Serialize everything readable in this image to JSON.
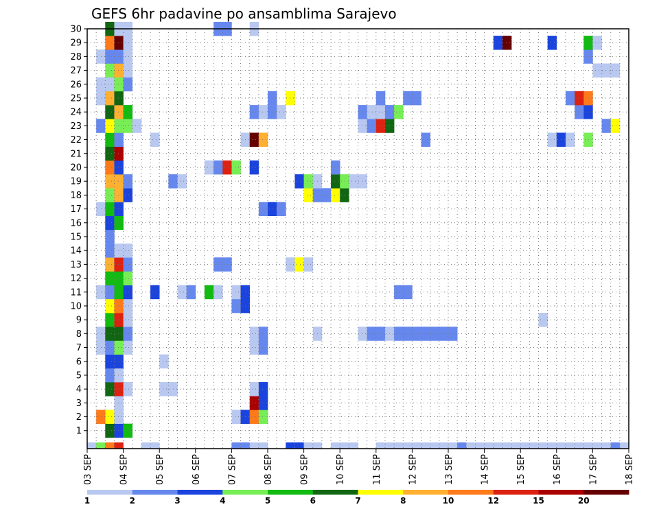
{
  "chart_data": {
    "type": "heatmap",
    "title": "GEFS 6hr padavine po ansamblima Sarajevo",
    "xlabel": "",
    "ylabel": "",
    "x_tick_labels": [
      "03 SEP",
      "04 SEP",
      "05 SEP",
      "06 SEP",
      "07 SEP",
      "08 SEP",
      "09 SEP",
      "10 SEP",
      "11 SEP",
      "12 SEP",
      "13 SEP",
      "14 SEP",
      "15 SEP",
      "16 SEP",
      "17 SEP",
      "18 SEP"
    ],
    "y_tick_labels": [
      "1",
      "2",
      "3",
      "4",
      "5",
      "6",
      "7",
      "8",
      "9",
      "10",
      "11",
      "12",
      "13",
      "14",
      "15",
      "16",
      "17",
      "18",
      "19",
      "20",
      "21",
      "22",
      "23",
      "24",
      "25",
      "26",
      "27",
      "28",
      "29",
      "30"
    ],
    "ylim": [
      0,
      30
    ],
    "xlim_6h_steps": [
      0,
      60
    ],
    "grid": true,
    "colorbar": {
      "position": "bottom",
      "tick_labels": [
        "1",
        "2",
        "3",
        "4",
        "5",
        "6",
        "7",
        "8",
        "10",
        "12",
        "15",
        "20"
      ],
      "colors": [
        "#b8c8f0",
        "#6688ee",
        "#1a44dd",
        "#77ee55",
        "#11bb11",
        "#116611",
        "#ffff00",
        "#ffb030",
        "#ff7a1a",
        "#dd2211",
        "#aa0000",
        "#660000"
      ]
    },
    "series": [
      {
        "member": 0,
        "cells": [
          [
            0,
            0
          ],
          [
            1,
            3
          ],
          [
            2,
            8
          ],
          [
            3,
            9
          ],
          [
            6,
            0
          ],
          [
            7,
            0
          ],
          [
            16,
            1
          ],
          [
            17,
            1
          ],
          [
            18,
            0
          ],
          [
            19,
            0
          ],
          [
            22,
            2
          ],
          [
            23,
            2
          ],
          [
            24,
            0
          ],
          [
            25,
            0
          ],
          [
            27,
            0
          ],
          [
            28,
            0
          ],
          [
            29,
            0
          ],
          [
            32,
            0
          ],
          [
            33,
            0
          ],
          [
            34,
            0
          ],
          [
            35,
            0
          ],
          [
            36,
            0
          ],
          [
            37,
            0
          ],
          [
            38,
            0
          ],
          [
            39,
            0
          ],
          [
            40,
            0
          ],
          [
            41,
            1
          ],
          [
            42,
            0
          ],
          [
            43,
            0
          ],
          [
            44,
            0
          ],
          [
            45,
            0
          ],
          [
            46,
            0
          ],
          [
            47,
            0
          ],
          [
            48,
            0
          ],
          [
            49,
            0
          ],
          [
            50,
            0
          ],
          [
            51,
            0
          ],
          [
            52,
            0
          ],
          [
            53,
            0
          ],
          [
            54,
            0
          ],
          [
            55,
            0
          ],
          [
            56,
            0
          ],
          [
            57,
            0
          ],
          [
            58,
            1
          ],
          [
            59,
            0
          ]
        ]
      },
      {
        "member": 1,
        "cells": [
          [
            2,
            5
          ],
          [
            3,
            2
          ],
          [
            4,
            4
          ]
        ]
      },
      {
        "member": 2,
        "cells": [
          [
            1,
            8
          ],
          [
            2,
            6
          ],
          [
            3,
            0
          ],
          [
            16,
            0
          ],
          [
            17,
            2
          ],
          [
            18,
            8
          ],
          [
            19,
            3
          ]
        ]
      },
      {
        "member": 3,
        "cells": [
          [
            3,
            0
          ],
          [
            18,
            10
          ],
          [
            19,
            2
          ]
        ]
      },
      {
        "member": 4,
        "cells": [
          [
            2,
            5
          ],
          [
            3,
            9
          ],
          [
            4,
            0
          ],
          [
            8,
            0
          ],
          [
            9,
            0
          ],
          [
            18,
            0
          ],
          [
            19,
            2
          ]
        ]
      },
      {
        "member": 5,
        "cells": [
          [
            2,
            1
          ],
          [
            3,
            0
          ]
        ]
      },
      {
        "member": 6,
        "cells": [
          [
            2,
            2
          ],
          [
            3,
            2
          ],
          [
            8,
            0
          ]
        ]
      },
      {
        "member": 7,
        "cells": [
          [
            1,
            0
          ],
          [
            2,
            1
          ],
          [
            3,
            3
          ],
          [
            4,
            0
          ],
          [
            18,
            0
          ],
          [
            19,
            1
          ]
        ]
      },
      {
        "member": 8,
        "cells": [
          [
            1,
            0
          ],
          [
            2,
            5
          ],
          [
            3,
            5
          ],
          [
            4,
            1
          ],
          [
            18,
            0
          ],
          [
            19,
            1
          ],
          [
            25,
            0
          ],
          [
            30,
            0
          ],
          [
            31,
            1
          ],
          [
            32,
            1
          ],
          [
            33,
            0
          ],
          [
            34,
            1
          ],
          [
            35,
            1
          ],
          [
            36,
            1
          ],
          [
            37,
            1
          ],
          [
            38,
            1
          ],
          [
            39,
            1
          ],
          [
            40,
            1
          ]
        ]
      },
      {
        "member": 9,
        "cells": [
          [
            2,
            4
          ],
          [
            3,
            9
          ],
          [
            4,
            0
          ],
          [
            50,
            0
          ]
        ]
      },
      {
        "member": 10,
        "cells": [
          [
            2,
            6
          ],
          [
            3,
            8
          ],
          [
            4,
            0
          ],
          [
            16,
            1
          ],
          [
            17,
            2
          ]
        ]
      },
      {
        "member": 11,
        "cells": [
          [
            1,
            0
          ],
          [
            2,
            1
          ],
          [
            3,
            4
          ],
          [
            4,
            2
          ],
          [
            7,
            2
          ],
          [
            10,
            0
          ],
          [
            11,
            1
          ],
          [
            13,
            4
          ],
          [
            14,
            0
          ],
          [
            16,
            0
          ],
          [
            17,
            2
          ],
          [
            34,
            1
          ],
          [
            35,
            1
          ]
        ]
      },
      {
        "member": 12,
        "cells": [
          [
            2,
            4
          ],
          [
            3,
            4
          ],
          [
            4,
            3
          ]
        ]
      },
      {
        "member": 13,
        "cells": [
          [
            2,
            7
          ],
          [
            3,
            9
          ],
          [
            4,
            1
          ],
          [
            14,
            1
          ],
          [
            15,
            1
          ],
          [
            22,
            0
          ],
          [
            23,
            6
          ],
          [
            24,
            0
          ]
        ]
      },
      {
        "member": 14,
        "cells": [
          [
            2,
            1
          ],
          [
            3,
            0
          ],
          [
            4,
            0
          ]
        ]
      },
      {
        "member": 15,
        "cells": [
          [
            2,
            1
          ]
        ]
      },
      {
        "member": 16,
        "cells": [
          [
            2,
            2
          ],
          [
            3,
            4
          ]
        ]
      },
      {
        "member": 17,
        "cells": [
          [
            1,
            0
          ],
          [
            2,
            4
          ],
          [
            3,
            2
          ],
          [
            19,
            1
          ],
          [
            20,
            2
          ],
          [
            21,
            1
          ]
        ]
      },
      {
        "member": 18,
        "cells": [
          [
            2,
            3
          ],
          [
            3,
            7
          ],
          [
            4,
            2
          ],
          [
            24,
            6
          ],
          [
            25,
            1
          ],
          [
            26,
            1
          ],
          [
            27,
            6
          ],
          [
            28,
            5
          ]
        ]
      },
      {
        "member": 19,
        "cells": [
          [
            2,
            7
          ],
          [
            3,
            7
          ],
          [
            4,
            1
          ],
          [
            9,
            1
          ],
          [
            10,
            0
          ],
          [
            23,
            2
          ],
          [
            24,
            3
          ],
          [
            25,
            0
          ],
          [
            27,
            5
          ],
          [
            28,
            3
          ],
          [
            29,
            0
          ],
          [
            30,
            0
          ]
        ]
      },
      {
        "member": 20,
        "cells": [
          [
            2,
            8
          ],
          [
            3,
            2
          ],
          [
            13,
            0
          ],
          [
            14,
            1
          ],
          [
            15,
            9
          ],
          [
            16,
            3
          ],
          [
            18,
            2
          ],
          [
            27,
            1
          ]
        ]
      },
      {
        "member": 21,
        "cells": [
          [
            2,
            5
          ],
          [
            3,
            10
          ]
        ]
      },
      {
        "member": 22,
        "cells": [
          [
            2,
            4
          ],
          [
            3,
            1
          ],
          [
            7,
            0
          ],
          [
            17,
            0
          ],
          [
            18,
            11
          ],
          [
            19,
            7
          ],
          [
            37,
            1
          ],
          [
            51,
            0
          ],
          [
            52,
            2
          ],
          [
            53,
            0
          ],
          [
            55,
            3
          ]
        ]
      },
      {
        "member": 23,
        "cells": [
          [
            1,
            1
          ],
          [
            2,
            6
          ],
          [
            3,
            3
          ],
          [
            4,
            3
          ],
          [
            5,
            0
          ],
          [
            30,
            0
          ],
          [
            31,
            1
          ],
          [
            32,
            9
          ],
          [
            33,
            5
          ],
          [
            57,
            1
          ],
          [
            58,
            6
          ]
        ]
      },
      {
        "member": 24,
        "cells": [
          [
            2,
            5
          ],
          [
            3,
            7
          ],
          [
            4,
            4
          ],
          [
            18,
            1
          ],
          [
            19,
            0
          ],
          [
            20,
            1
          ],
          [
            21,
            0
          ],
          [
            30,
            1
          ],
          [
            31,
            0
          ],
          [
            32,
            0
          ],
          [
            33,
            1
          ],
          [
            34,
            3
          ],
          [
            54,
            1
          ],
          [
            55,
            2
          ]
        ]
      },
      {
        "member": 25,
        "cells": [
          [
            1,
            0
          ],
          [
            2,
            7
          ],
          [
            3,
            5
          ],
          [
            20,
            1
          ],
          [
            22,
            6
          ],
          [
            32,
            1
          ],
          [
            35,
            1
          ],
          [
            36,
            1
          ],
          [
            53,
            1
          ],
          [
            54,
            9
          ],
          [
            55,
            8
          ]
        ]
      },
      {
        "member": 26,
        "cells": [
          [
            1,
            0
          ],
          [
            2,
            0
          ],
          [
            3,
            3
          ],
          [
            4,
            1
          ]
        ]
      },
      {
        "member": 27,
        "cells": [
          [
            2,
            3
          ],
          [
            3,
            7
          ],
          [
            4,
            0
          ],
          [
            56,
            0
          ],
          [
            57,
            0
          ],
          [
            58,
            0
          ]
        ]
      },
      {
        "member": 28,
        "cells": [
          [
            1,
            0
          ],
          [
            2,
            1
          ],
          [
            3,
            1
          ],
          [
            4,
            0
          ],
          [
            55,
            1
          ]
        ]
      },
      {
        "member": 29,
        "cells": [
          [
            2,
            8
          ],
          [
            3,
            11
          ],
          [
            4,
            0
          ],
          [
            45,
            2
          ],
          [
            46,
            11
          ],
          [
            51,
            2
          ],
          [
            55,
            4
          ],
          [
            56,
            0
          ]
        ]
      },
      {
        "member": 30,
        "cells": [
          [
            2,
            5
          ],
          [
            3,
            0
          ],
          [
            4,
            0
          ],
          [
            14,
            1
          ],
          [
            15,
            1
          ],
          [
            18,
            0
          ]
        ]
      }
    ]
  }
}
